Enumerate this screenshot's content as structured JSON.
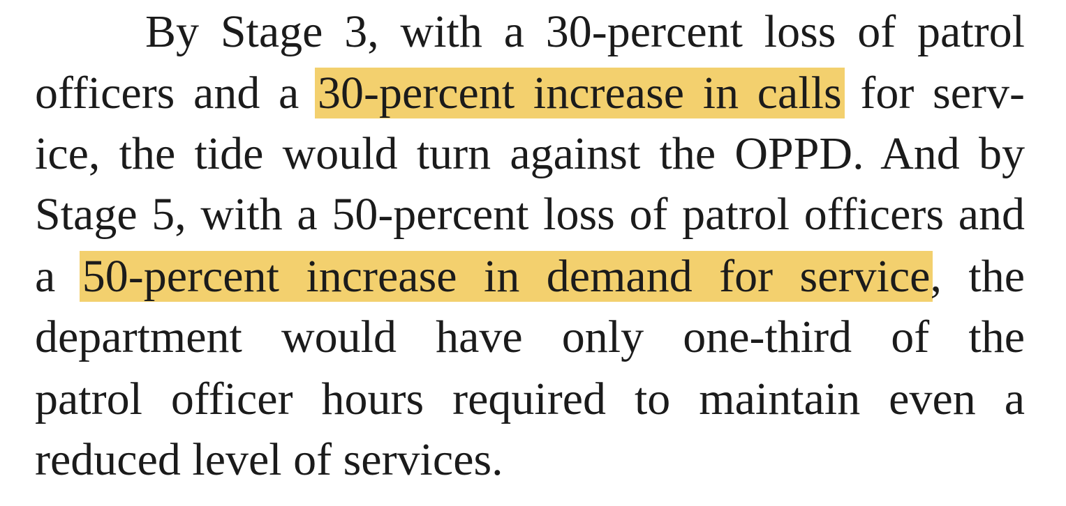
{
  "document": {
    "lines": [
      {
        "segments": [
          {
            "text": "By Stage 3, with a 30-percent loss of patrol"
          }
        ]
      },
      {
        "segments": [
          {
            "text": "officers and a "
          },
          {
            "text": "30-percent increase in calls",
            "highlight": true
          },
          {
            "text": " for serv-"
          }
        ]
      },
      {
        "segments": [
          {
            "text": "ice, the tide would turn against the OPPD. And by"
          }
        ]
      },
      {
        "segments": [
          {
            "text": "Stage 5, with a 50-percent loss of patrol officers and"
          }
        ]
      },
      {
        "segments": [
          {
            "text": "a "
          },
          {
            "text": "50-percent increase in demand for service",
            "highlight": true
          },
          {
            "text": ", the"
          }
        ]
      },
      {
        "segments": [
          {
            "text": "department would have only one-third of the"
          }
        ]
      },
      {
        "segments": [
          {
            "text": "patrol officer hours required to maintain even a"
          }
        ]
      },
      {
        "segments": [
          {
            "text": "reduced level of services."
          }
        ]
      }
    ],
    "highlight_color": "#f3d06e",
    "text_color": "#1b1b1b"
  }
}
